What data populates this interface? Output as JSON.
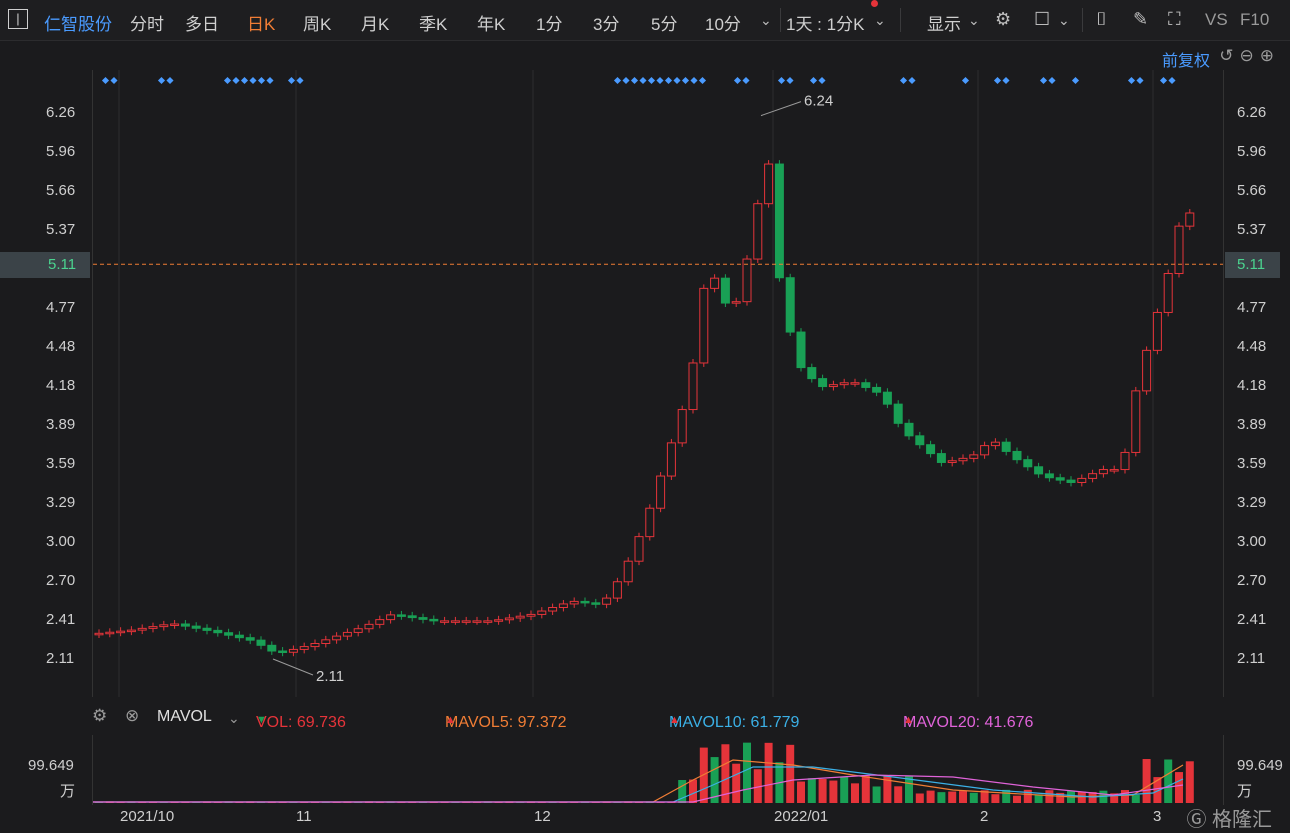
{
  "toolbar": {
    "stock_name": "仁智股份",
    "periods": [
      "分时",
      "多日",
      "日K",
      "周K",
      "月K",
      "季K",
      "年K",
      "1分",
      "3分",
      "5分",
      "10分"
    ],
    "active_period": "日K",
    "interval_selector": "1天 : 1分K",
    "display_menu": "显示",
    "vs_label": "VS",
    "f10_label": "F10",
    "adjust_label": "前复权"
  },
  "price_axis": {
    "ticks": [
      "6.26",
      "5.96",
      "5.66",
      "5.37",
      "5.11",
      "4.77",
      "4.48",
      "4.18",
      "3.89",
      "3.59",
      "3.29",
      "3.00",
      "2.70",
      "2.41",
      "2.11"
    ],
    "current_price": "5.11",
    "high_label": "6.24",
    "low_label": "2.11"
  },
  "volume_header": {
    "indicator": "MAVOL",
    "vol_label": "VOL: 69.736",
    "vol_arrow": "▼",
    "mavol5_label": "MAVOL5: 97.372",
    "mavol5_arrow": "▲",
    "mavol10_label": "MAVOL10: 61.779",
    "mavol10_arrow": "▲",
    "mavol20_label": "MAVOL20: 41.676",
    "mavol20_arrow": "▲",
    "colors": {
      "vol": "#e5343a",
      "mavol5": "#f07d35",
      "mavol10": "#3bb0e6",
      "mavol20": "#e063d9",
      "up": "#e5343a",
      "down": "#19a055"
    }
  },
  "volume_axis": {
    "value": "99.649",
    "unit": "万"
  },
  "x_axis": [
    "2021/10",
    "11",
    "12",
    "2022/01",
    "2",
    "3"
  ],
  "brand": "格隆汇"
}
